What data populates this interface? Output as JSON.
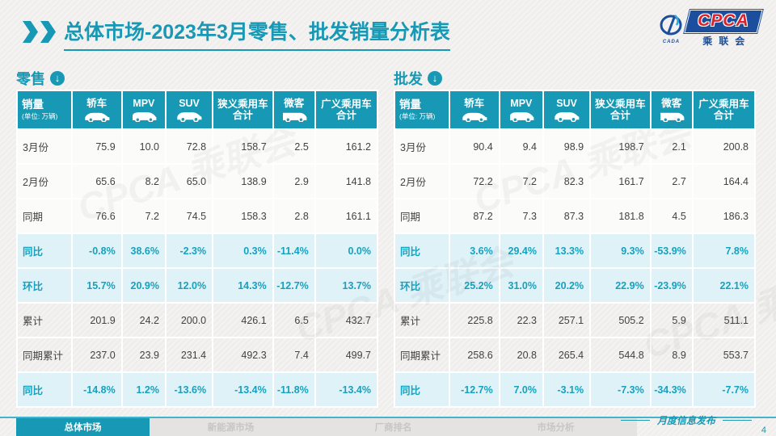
{
  "header": {
    "title_main": "总体市场",
    "title_rest": "-2023年3月零售、批发销量分析表",
    "logo": {
      "cpca_text": "CPCA",
      "sub_text": "乘联会",
      "cada_text": "CADA"
    }
  },
  "chart_data": [
    {
      "type": "table",
      "title": "零售",
      "unit_note": "(单位: 万辆)",
      "columns": [
        {
          "label": "销量",
          "sub": "(单位: 万辆)"
        },
        {
          "label": "轿车",
          "icon": "sedan-icon"
        },
        {
          "label": "MPV",
          "icon": "mpv-icon"
        },
        {
          "label": "SUV",
          "icon": "suv-icon"
        },
        {
          "label": "狭义乘用车",
          "label2": "合计"
        },
        {
          "label": "微客",
          "icon": "van-icon"
        },
        {
          "label": "广义乘用车",
          "label2": "合计"
        }
      ],
      "rows": [
        {
          "label": "3月份",
          "style": "normal",
          "values": [
            "75.9",
            "10.0",
            "72.8",
            "158.7",
            "2.5",
            "161.2"
          ]
        },
        {
          "label": "2月份",
          "style": "normal",
          "values": [
            "65.6",
            "8.2",
            "65.0",
            "138.9",
            "2.9",
            "141.8"
          ]
        },
        {
          "label": "同期",
          "style": "normal",
          "values": [
            "76.6",
            "7.2",
            "74.5",
            "158.3",
            "2.8",
            "161.1"
          ]
        },
        {
          "label": "同比",
          "style": "pct",
          "values": [
            "-0.8%",
            "38.6%",
            "-2.3%",
            "0.3%",
            "-11.4%",
            "0.0%"
          ]
        },
        {
          "label": "环比",
          "style": "pct",
          "values": [
            "15.7%",
            "20.9%",
            "12.0%",
            "14.3%",
            "-12.7%",
            "13.7%"
          ]
        },
        {
          "label": "累计",
          "style": "gray",
          "values": [
            "201.9",
            "24.2",
            "200.0",
            "426.1",
            "6.5",
            "432.7"
          ]
        },
        {
          "label": "同期累计",
          "style": "gray",
          "values": [
            "237.0",
            "23.9",
            "231.4",
            "492.3",
            "7.4",
            "499.7"
          ]
        },
        {
          "label": "同比",
          "style": "pct",
          "values": [
            "-14.8%",
            "1.2%",
            "-13.6%",
            "-13.4%",
            "-11.8%",
            "-13.4%"
          ]
        }
      ]
    },
    {
      "type": "table",
      "title": "批发",
      "unit_note": "(单位: 万辆)",
      "columns": [
        {
          "label": "销量",
          "sub": "(单位: 万辆)"
        },
        {
          "label": "轿车",
          "icon": "sedan-icon"
        },
        {
          "label": "MPV",
          "icon": "mpv-icon"
        },
        {
          "label": "SUV",
          "icon": "suv-icon"
        },
        {
          "label": "狭义乘用车",
          "label2": "合计"
        },
        {
          "label": "微客",
          "icon": "van-icon"
        },
        {
          "label": "广义乘用车",
          "label2": "合计"
        }
      ],
      "rows": [
        {
          "label": "3月份",
          "style": "normal",
          "values": [
            "90.4",
            "9.4",
            "98.9",
            "198.7",
            "2.1",
            "200.8"
          ]
        },
        {
          "label": "2月份",
          "style": "normal",
          "values": [
            "72.2",
            "7.2",
            "82.3",
            "161.7",
            "2.7",
            "164.4"
          ]
        },
        {
          "label": "同期",
          "style": "normal",
          "values": [
            "87.2",
            "7.3",
            "87.3",
            "181.8",
            "4.5",
            "186.3"
          ]
        },
        {
          "label": "同比",
          "style": "pct",
          "values": [
            "3.6%",
            "29.4%",
            "13.3%",
            "9.3%",
            "-53.9%",
            "7.8%"
          ]
        },
        {
          "label": "环比",
          "style": "pct",
          "values": [
            "25.2%",
            "31.0%",
            "20.2%",
            "22.9%",
            "-23.9%",
            "22.1%"
          ]
        },
        {
          "label": "累计",
          "style": "gray",
          "values": [
            "225.8",
            "22.3",
            "257.1",
            "505.2",
            "5.9",
            "511.1"
          ]
        },
        {
          "label": "同期累计",
          "style": "gray",
          "values": [
            "258.6",
            "20.8",
            "265.4",
            "544.8",
            "8.9",
            "553.7"
          ]
        },
        {
          "label": "同比",
          "style": "pct",
          "values": [
            "-12.7%",
            "7.0%",
            "-3.1%",
            "-7.3%",
            "-34.3%",
            "-7.7%"
          ]
        }
      ]
    }
  ],
  "footer": {
    "tabs": [
      {
        "label": "总体市场",
        "active": true
      },
      {
        "label": "新能源市场",
        "active": false
      },
      {
        "label": "厂商排名",
        "active": false
      },
      {
        "label": "市场分析",
        "active": false
      }
    ],
    "release_label": "月度信息发布",
    "page_number": "4"
  },
  "colors": {
    "accent_teal": "#1798b4",
    "pct_row_bg": "#def2f8",
    "pct_text": "#17a1be",
    "logo_blue": "#1b4f9e",
    "logo_red": "#d9232e"
  },
  "watermark_text": "CPCA 乘联会"
}
